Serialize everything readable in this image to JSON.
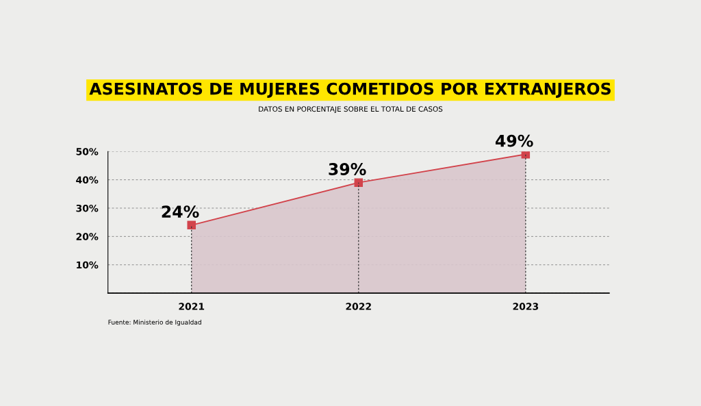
{
  "chart_data": {
    "type": "area",
    "title": "ASESINATOS DE MUJERES COMETIDOS POR EXTRANJEROS",
    "subtitle": "DATOS EN PORCENTAJE SOBRE EL TOTAL DE CASOS",
    "categories": [
      "2021",
      "2022",
      "2023"
    ],
    "series": [
      {
        "color": "#d2434b",
        "values": [
          24,
          39,
          49
        ]
      }
    ],
    "ylim": [
      0,
      50
    ],
    "yticks": [
      {
        "value": 0,
        "label": null
      },
      {
        "value": 10,
        "label": "10%"
      },
      {
        "value": 20,
        "label": "20%"
      },
      {
        "value": 30,
        "label": "30%"
      },
      {
        "value": 40,
        "label": "40%"
      },
      {
        "value": 50,
        "label": "50%"
      }
    ],
    "value_labels": [
      "24%",
      "39%",
      "49%"
    ],
    "grid": true,
    "marker": "square",
    "line_style": "solid",
    "legend": false,
    "annotations": [
      "Fuente: Ministerio de Igualdad"
    ]
  }
}
